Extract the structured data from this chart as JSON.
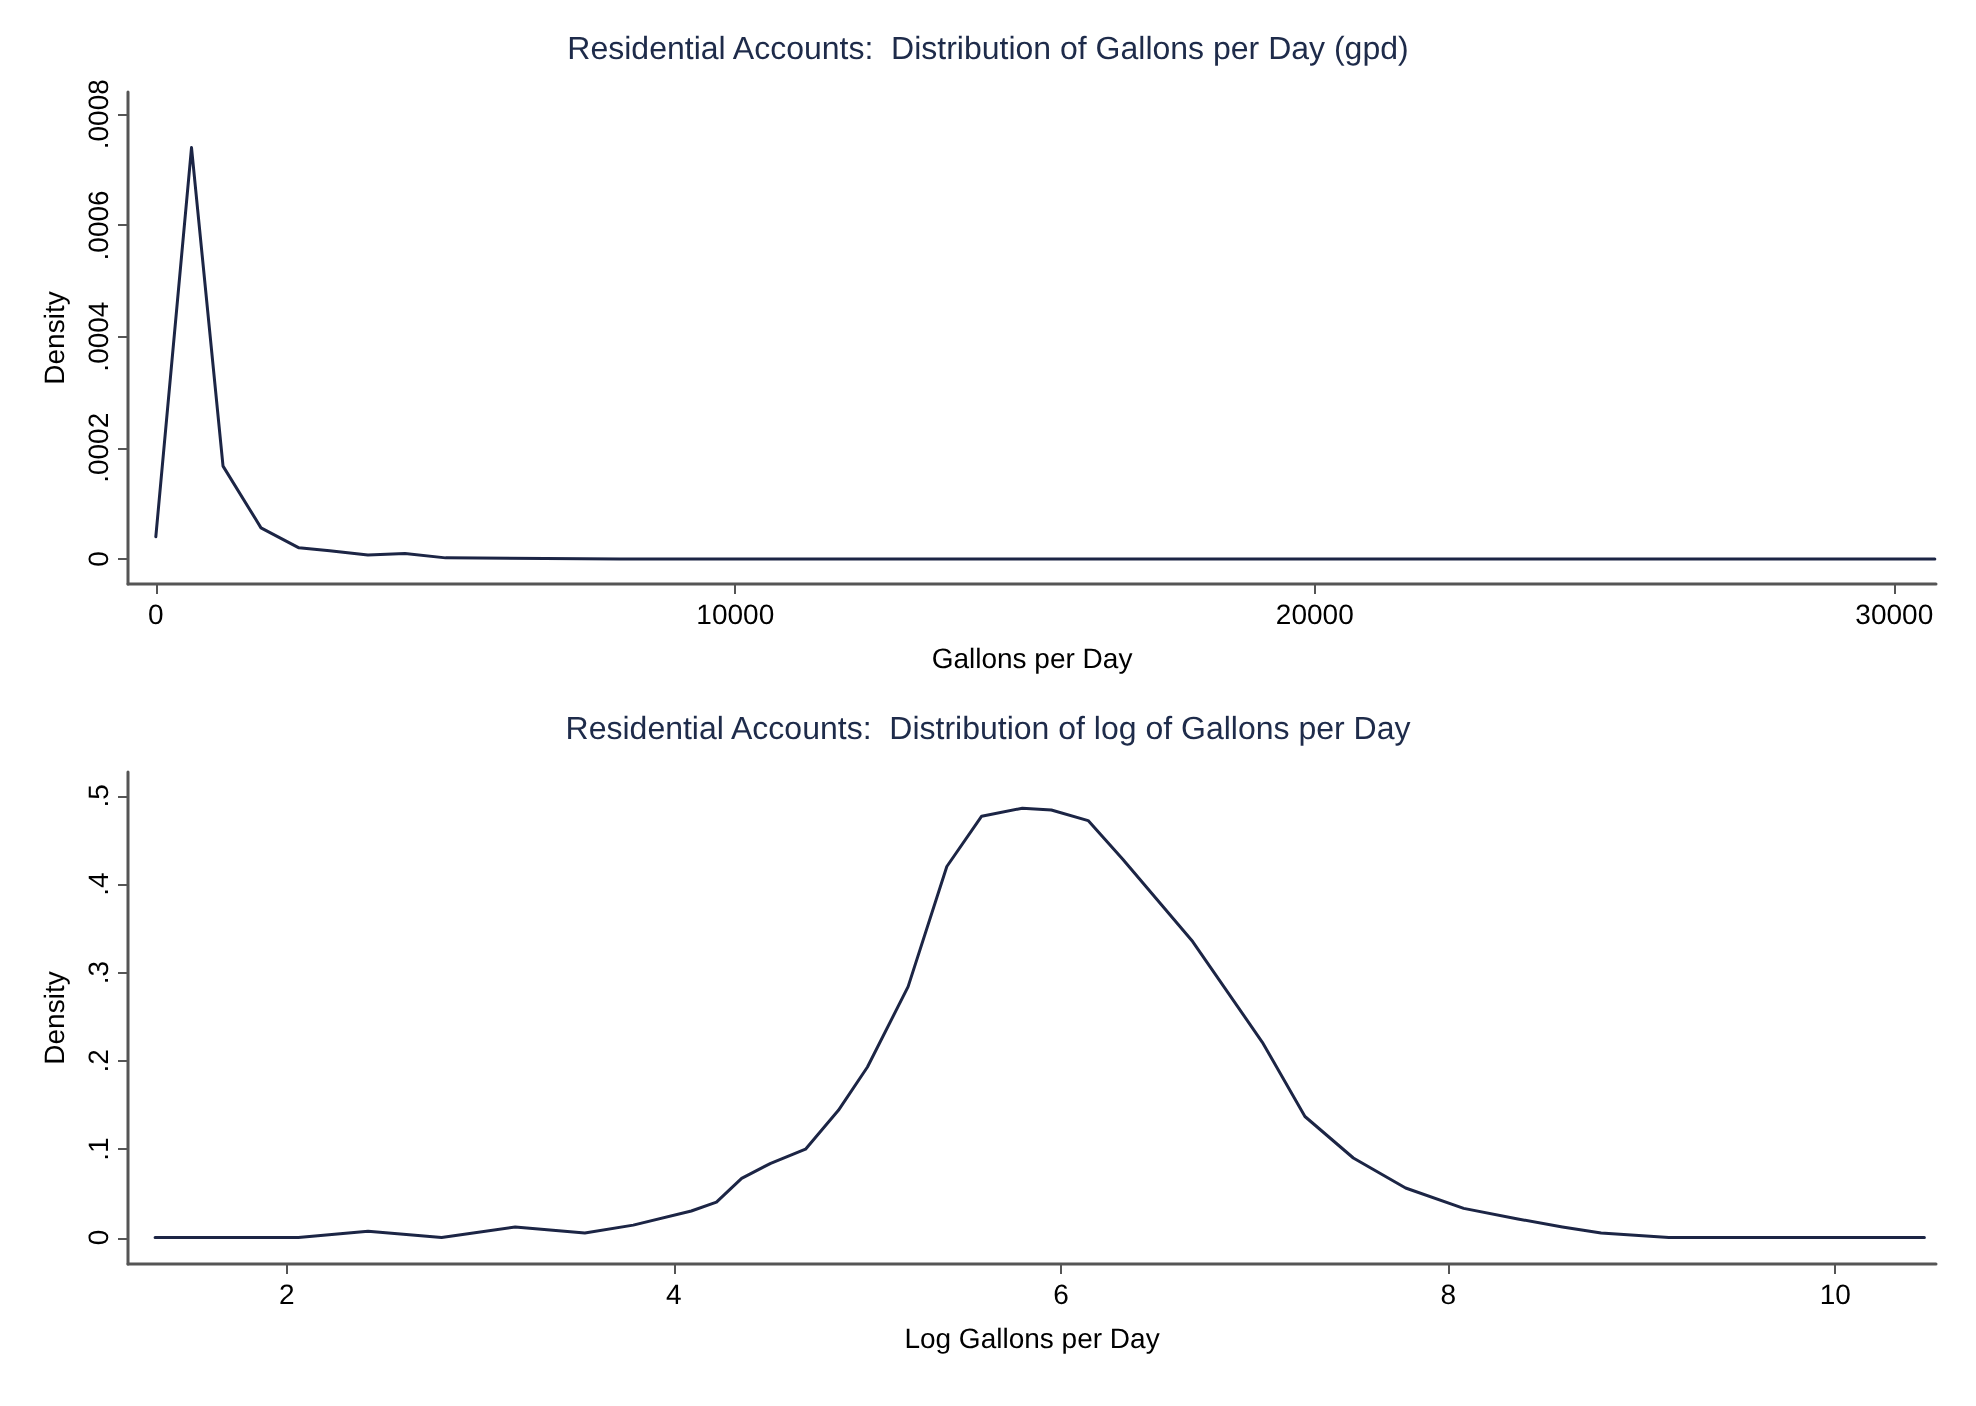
{
  "chart_data": [
    {
      "type": "line",
      "title": "Residential Accounts:  Distribution of Gallons per Day (gpd)",
      "xlabel": "Gallons per Day",
      "ylabel": "Density",
      "color": "#1c2545",
      "x": [
        0,
        616,
        1160,
        1815,
        2470,
        3000,
        3660,
        4300,
        5000,
        8000,
        15000,
        22000,
        30700
      ],
      "values": [
        4e-05,
        0.00074,
        0.000167,
        5.6e-05,
        2e-05,
        1.5e-05,
        7e-06,
        1e-05,
        2e-06,
        0,
        0,
        0,
        0
      ],
      "xlim": [
        -480,
        30720
      ],
      "ylim": [
        -4.5e-05,
        0.00084
      ],
      "xticks": [
        0,
        10000,
        20000,
        30000
      ],
      "yticks": [
        0,
        {
          "value": 0.0002,
          "label": ".0002"
        },
        {
          "value": 0.0004,
          "label": ".0004"
        },
        {
          "value": 0.0006,
          "label": ".0006"
        },
        {
          "value": 0.0008,
          "label": ".0008"
        }
      ],
      "grid": false,
      "marker": "none",
      "line_style": "solid"
    },
    {
      "type": "line",
      "title": "Residential Accounts:  Distribution of log of Gallons per Day",
      "xlabel": "Log Gallons per Day",
      "ylabel": "Density",
      "color": "#1c2545",
      "x": [
        1.32,
        2.06,
        2.42,
        2.8,
        3.18,
        3.54,
        3.79,
        4.09,
        4.22,
        4.35,
        4.5,
        4.68,
        4.85,
        5.0,
        5.21,
        5.41,
        5.59,
        5.8,
        5.95,
        6.14,
        6.32,
        6.68,
        7.04,
        7.26,
        7.51,
        7.78,
        8.08,
        8.36,
        8.59,
        8.79,
        9.14,
        10.46
      ],
      "values": [
        0,
        0,
        0.007,
        0,
        0.012,
        0.005,
        0.014,
        0.03,
        0.04,
        0.067,
        0.084,
        0.1,
        0.144,
        0.193,
        0.284,
        0.42,
        0.477,
        0.486,
        0.484,
        0.472,
        0.428,
        0.335,
        0.221,
        0.137,
        0.09,
        0.056,
        0.033,
        0.021,
        0.012,
        0.005,
        0,
        0
      ],
      "xlim": [
        1.18,
        10.52
      ],
      "ylim": [
        -0.03,
        0.527
      ],
      "xticks": [
        2,
        4,
        6,
        8,
        10
      ],
      "yticks": [
        0,
        {
          "value": 0.1,
          "label": ".1"
        },
        {
          "value": 0.2,
          "label": ".2"
        },
        {
          "value": 0.3,
          "label": ".3"
        },
        {
          "value": 0.4,
          "label": ".4"
        },
        {
          "value": 0.5,
          "label": ".5"
        }
      ],
      "grid": false,
      "marker": "none",
      "line_style": "solid"
    }
  ]
}
